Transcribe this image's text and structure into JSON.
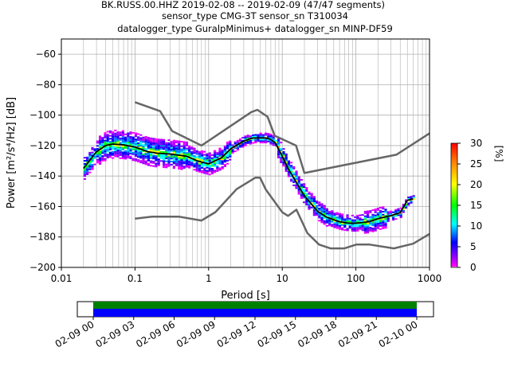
{
  "title_lines": [
    "BK.RUSS.00.HHZ   2019-02-08 -- 2019-02-09  (47/47 segments)",
    "sensor_type CMG-3T sensor_sn T310034",
    "datalogger_type GuralpMinimus+ datalogger_sn MINP-DF59"
  ],
  "chart_data": {
    "type": "heatmap",
    "xlabel": "Period [s]",
    "ylabel": "Power [m²/s⁴/Hz] [dB]",
    "xscale": "log",
    "xlim": [
      0.01,
      1000
    ],
    "ylim": [
      -200,
      -50
    ],
    "x_ticks": [
      0.01,
      0.1,
      1,
      10,
      100,
      1000
    ],
    "x_tick_labels": [
      "0.01",
      "0.1",
      "1",
      "10",
      "100",
      "1000"
    ],
    "y_ticks": [
      -200,
      -180,
      -160,
      -140,
      -120,
      -100,
      -80,
      -60
    ],
    "y_tick_labels": [
      "−200",
      "−180",
      "−160",
      "−140",
      "−120",
      "−100",
      "−80",
      "−60"
    ],
    "grid": true,
    "colorbar": {
      "label": "[%]",
      "range": [
        0,
        30
      ],
      "ticks": [
        0,
        5,
        10,
        15,
        20,
        25,
        30
      ],
      "tick_labels": [
        "0",
        "5",
        "10",
        "15",
        "20",
        "25",
        "30"
      ]
    },
    "high_noise_model": {
      "period": [
        0.1,
        0.22,
        0.32,
        0.8,
        3.8,
        4.6,
        6.3,
        7.9,
        15.4,
        20,
        354.8,
        1000
      ],
      "db": [
        -91.5,
        -97.4,
        -110.5,
        -120,
        -98,
        -96.5,
        -101,
        -113.5,
        -120,
        -138,
        -126,
        -112
      ]
    },
    "low_noise_model": {
      "period": [
        0.1,
        0.17,
        0.4,
        0.8,
        1.24,
        2.4,
        4.3,
        5,
        6,
        10,
        12,
        15.6,
        21.9,
        31.6,
        45,
        70,
        101,
        154,
        328,
        600,
        1000
      ],
      "db": [
        -168,
        -166.7,
        -166.7,
        -169.2,
        -163.7,
        -148.6,
        -141.1,
        -141.1,
        -149,
        -163.8,
        -166.2,
        -162.1,
        -177.5,
        -185,
        -187.5,
        -187.5,
        -185,
        -185,
        -187.5,
        -184.4,
        -178
      ]
    },
    "median_ppsd": {
      "period": [
        0.02,
        0.03,
        0.04,
        0.05,
        0.07,
        0.1,
        0.15,
        0.2,
        0.3,
        0.5,
        0.7,
        1,
        1.5,
        2,
        3,
        4,
        5,
        6,
        7,
        8,
        10,
        12,
        15,
        20,
        30,
        40,
        60,
        80,
        100,
        150,
        200,
        300,
        400,
        500,
        600
      ],
      "db": [
        -135,
        -124,
        -120,
        -119,
        -119.5,
        -121,
        -124,
        -125,
        -125.5,
        -127,
        -130,
        -132,
        -128,
        -122,
        -117,
        -115,
        -115,
        -115,
        -116,
        -118,
        -127,
        -135,
        -143,
        -153,
        -163,
        -167,
        -170,
        -171,
        -171,
        -170,
        -168,
        -166,
        -164,
        -156,
        -155
      ]
    },
    "timeline": {
      "tick_labels": [
        "02-09 00",
        "02-09 03",
        "02-09 06",
        "02-09 09",
        "02-09 12",
        "02-09 15",
        "02-09 18",
        "02-09 21",
        "02-10 00"
      ],
      "bar_colors": [
        "#008000",
        "#0000ff"
      ]
    }
  }
}
